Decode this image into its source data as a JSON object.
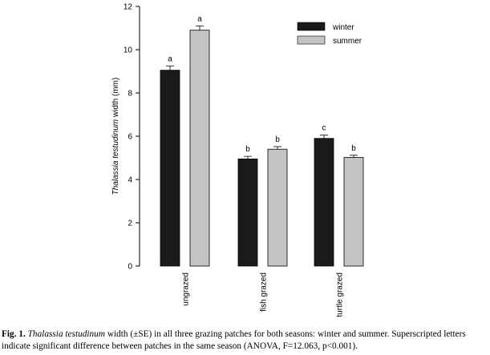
{
  "chart_data": {
    "type": "bar",
    "categories": [
      "ungrazed",
      "fish grazed",
      "turtle grazed"
    ],
    "series": [
      {
        "name": "winter",
        "color": "#1a1a1a",
        "values": [
          9.05,
          4.95,
          5.9
        ],
        "errors": [
          0.2,
          0.12,
          0.15
        ],
        "letters": [
          "a",
          "b",
          "c"
        ]
      },
      {
        "name": "summer",
        "color": "#c4c4c4",
        "values": [
          10.9,
          5.4,
          5.02
        ],
        "errors": [
          0.2,
          0.12,
          0.1
        ],
        "letters": [
          "a",
          "b",
          "b"
        ]
      }
    ],
    "ylabel_species": "Thalassia testudinum",
    "ylabel_rest": " width (mm)",
    "ylim": [
      0,
      12
    ],
    "yticks": [
      "0",
      "2",
      "4",
      "6",
      "8",
      "10",
      "12"
    ],
    "legend_position": "top-right",
    "grid": false
  },
  "caption": {
    "label": "Fig. 1.",
    "species": "Thalassia testudinum",
    "text": " width (±SE) in all three grazing patches for both seasons: winter and summer. Superscripted letters indicate significant difference between patches in the same season (ANOVA, F=12.063, p<0.001)."
  }
}
